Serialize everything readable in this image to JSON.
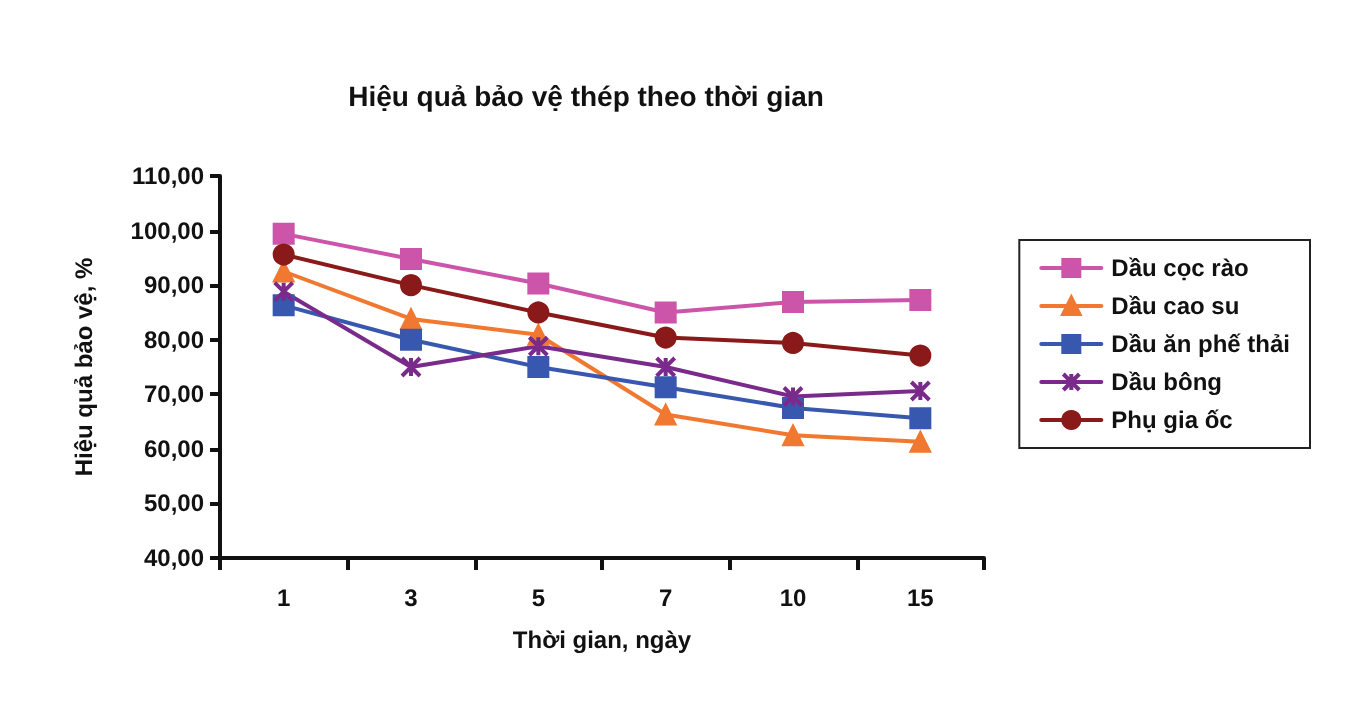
{
  "chart_data": {
    "type": "line",
    "title": "Hiệu quả bảo vệ thép theo thời gian",
    "xlabel": "Thời gian, ngày",
    "ylabel": "Hiệu quả bảo vệ, %",
    "categories": [
      "1",
      "3",
      "5",
      "7",
      "10",
      "15"
    ],
    "ylim": [
      40,
      110
    ],
    "yticks": [
      {
        "value": 40,
        "label": "40,00"
      },
      {
        "value": 50,
        "label": "50,00"
      },
      {
        "value": 60,
        "label": "60,00"
      },
      {
        "value": 70,
        "label": "70,00"
      },
      {
        "value": 80,
        "label": "80,00"
      },
      {
        "value": 90,
        "label": "90,00"
      },
      {
        "value": 100,
        "label": "100,00"
      },
      {
        "value": 110,
        "label": "110,00"
      }
    ],
    "grid": false,
    "legend": "right",
    "series": [
      {
        "name": "Dầu cọc rào",
        "color": "#cc55aa",
        "marker": "square",
        "values": [
          99.4,
          94.8,
          90.3,
          85,
          86.9,
          87.3
        ]
      },
      {
        "name": "Dầu cao su",
        "color": "#f07830",
        "marker": "triangle",
        "values": [
          92.5,
          83.8,
          80.9,
          66.3,
          62.5,
          61.3
        ]
      },
      {
        "name": "Dầu ăn phế thải",
        "color": "#3858b0",
        "marker": "square",
        "values": [
          86.3,
          80,
          75,
          71.3,
          67.5,
          65.6
        ]
      },
      {
        "name": "Dầu bông",
        "color": "#7a2a8a",
        "marker": "cross",
        "values": [
          88.8,
          75,
          78.8,
          75,
          69.6,
          70.6
        ]
      },
      {
        "name": "Phụ gia ốc",
        "color": "#8a1a1a",
        "marker": "circle",
        "values": [
          95.6,
          90,
          85,
          80.4,
          79.4,
          77.1
        ]
      }
    ]
  }
}
